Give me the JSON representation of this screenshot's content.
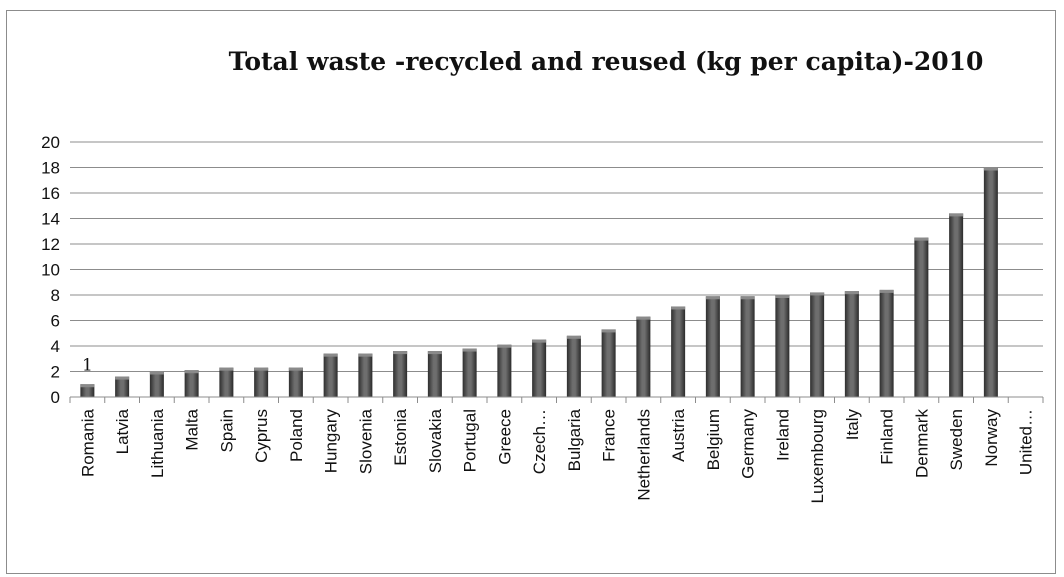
{
  "chart_data": {
    "type": "bar",
    "title": "Total waste -recycled and reused (kg per capita)-2010",
    "xlabel": "",
    "ylabel": "",
    "ylim": [
      0,
      20
    ],
    "yticks": [
      0,
      2,
      4,
      6,
      8,
      10,
      12,
      14,
      16,
      18,
      20
    ],
    "grid": true,
    "legend": "none",
    "categories": [
      "Romania",
      "Latvia",
      "Lithuania",
      "Malta",
      "Spain",
      "Cyprus",
      "Poland",
      "Hungary",
      "Slovenia",
      "Estonia",
      "Slovakia",
      "Portugal",
      "Greece",
      "Czech…",
      "Bulgaria",
      "France",
      "Netherlands",
      "Austria",
      "Belgium",
      "Germany",
      "Ireland",
      "Luxembourg",
      "Italy",
      "Finland",
      "Denmark",
      "Sweden",
      "Norway",
      "United…"
    ],
    "values": [
      1,
      1.6,
      2,
      2.1,
      2.3,
      2.3,
      2.3,
      3.4,
      3.4,
      3.6,
      3.6,
      3.8,
      4.1,
      4.5,
      4.8,
      5.3,
      6.3,
      7.1,
      7.9,
      7.9,
      8.0,
      8.2,
      8.3,
      8.4,
      12.5,
      14.4,
      18.0,
      null
    ],
    "data_labels": [
      {
        "index": 0,
        "text": "1"
      }
    ],
    "colors": {
      "bar_dark": "#2e2e2e",
      "bar_mid": "#6e6e6e",
      "bar_light": "#8a8a8a",
      "grid": "#8c8c8c"
    }
  }
}
